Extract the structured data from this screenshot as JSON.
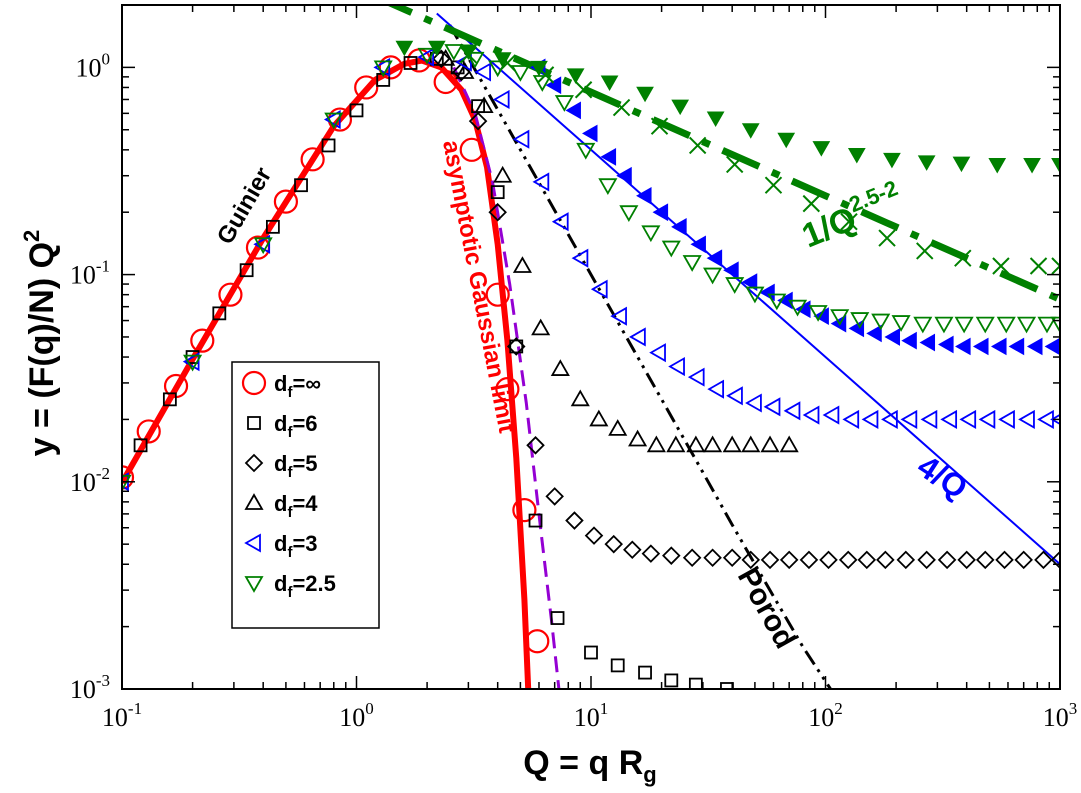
{
  "chart_data": {
    "type": "scatter",
    "scale": "log-log",
    "xlabel": "Q = q R",
    "xlabel_sub": "g",
    "ylabel": "y = (F(q)/N) Q",
    "ylabel_sup": "2",
    "xlim": [
      0.1,
      1000
    ],
    "ylim": [
      0.001,
      2
    ],
    "x_ticks": [
      {
        "value": 0.1,
        "base": "10",
        "exp": "-1"
      },
      {
        "value": 1,
        "base": "10",
        "exp": "0"
      },
      {
        "value": 10,
        "base": "10",
        "exp": "1"
      },
      {
        "value": 100,
        "base": "10",
        "exp": "2"
      },
      {
        "value": 1000,
        "base": "10",
        "exp": "3"
      }
    ],
    "y_ticks": [
      {
        "value": 0.001,
        "base": "10",
        "exp": "-3"
      },
      {
        "value": 0.01,
        "base": "10",
        "exp": "-2"
      },
      {
        "value": 0.1,
        "base": "10",
        "exp": "-1"
      },
      {
        "value": 1,
        "base": "10",
        "exp": "0"
      }
    ],
    "series": [
      {
        "name": "df_inf",
        "label_base": "d",
        "label_sub": "f",
        "label_rest": "=∞",
        "marker": "circle",
        "color": "#ff0000",
        "x": [
          0.1,
          0.13,
          0.17,
          0.22,
          0.29,
          0.38,
          0.5,
          0.65,
          0.85,
          1.1,
          1.4,
          1.85,
          2.4,
          3.1,
          4.0,
          4.4,
          5.2,
          5.9
        ],
        "y": [
          0.0105,
          0.0175,
          0.029,
          0.048,
          0.08,
          0.135,
          0.225,
          0.36,
          0.56,
          0.8,
          1.0,
          1.08,
          0.85,
          0.4,
          0.08,
          0.028,
          0.0073,
          0.0017
        ]
      },
      {
        "name": "df_6",
        "label_base": "d",
        "label_sub": "f",
        "label_rest": "=6",
        "marker": "square",
        "color": "#000000",
        "x": [
          0.12,
          0.16,
          0.2,
          0.26,
          0.34,
          0.44,
          0.58,
          0.76,
          1.0,
          1.3,
          1.7,
          2.2,
          2.7,
          3.3,
          4.0,
          4.8,
          5.8,
          7.2,
          10,
          13,
          17,
          22,
          28,
          38
        ],
        "y": [
          0.015,
          0.025,
          0.04,
          0.065,
          0.105,
          0.17,
          0.27,
          0.42,
          0.62,
          0.87,
          1.05,
          1.1,
          1.0,
          0.65,
          0.25,
          0.045,
          0.0065,
          0.0022,
          0.0015,
          0.0013,
          0.0012,
          0.0011,
          0.00105,
          0.001
        ]
      },
      {
        "name": "df_5",
        "label_base": "d",
        "label_sub": "f",
        "label_rest": "=5",
        "marker": "diamond",
        "color": "#000000",
        "x": [
          2.3,
          2.8,
          3.3,
          4.0,
          4.8,
          5.8,
          7.0,
          8.5,
          10.3,
          12.5,
          15,
          18,
          22,
          27,
          33,
          40,
          48,
          58,
          70,
          85,
          103,
          125,
          150,
          180,
          220,
          270,
          330,
          400,
          480,
          580,
          700,
          850,
          1000
        ],
        "y": [
          1.1,
          0.95,
          0.55,
          0.2,
          0.045,
          0.015,
          0.0085,
          0.0065,
          0.0055,
          0.005,
          0.0047,
          0.0045,
          0.0044,
          0.0043,
          0.0043,
          0.0043,
          0.0042,
          0.0042,
          0.0042,
          0.0042,
          0.0042,
          0.0042,
          0.0042,
          0.0042,
          0.0042,
          0.0042,
          0.0042,
          0.0042,
          0.0042,
          0.0042,
          0.0042,
          0.0042,
          0.0042
        ]
      },
      {
        "name": "df_4",
        "label_base": "d",
        "label_sub": "f",
        "label_rest": "=4",
        "marker": "triangle-up",
        "color": "#000000",
        "x": [
          2.4,
          2.9,
          3.5,
          4.2,
          5.1,
          6.1,
          7.4,
          9.0,
          10.8,
          13,
          15.8,
          19,
          23,
          28,
          33,
          40,
          48,
          58,
          70
        ],
        "y": [
          1.1,
          0.95,
          0.65,
          0.3,
          0.11,
          0.055,
          0.035,
          0.025,
          0.02,
          0.018,
          0.016,
          0.015,
          0.015,
          0.015,
          0.015,
          0.015,
          0.015,
          0.015,
          0.015
        ]
      },
      {
        "name": "df_3",
        "label_base": "d",
        "label_sub": "f",
        "label_rest": "=3",
        "marker": "triangle-left-open",
        "color": "#0000ff",
        "x": [
          0.1,
          0.2,
          0.4,
          0.8,
          1.3,
          2.0,
          2.9,
          3.5,
          4.2,
          5.1,
          6.2,
          7.5,
          9.1,
          11,
          13.3,
          16,
          19.5,
          23.5,
          28.5,
          34.5,
          41.5,
          50,
          60,
          73,
          88,
          107,
          130,
          157,
          190,
          230,
          280,
          340,
          410,
          495,
          600,
          730,
          880,
          1000
        ],
        "y": [
          0.01,
          0.038,
          0.14,
          0.56,
          1.0,
          1.12,
          1.06,
          0.95,
          0.7,
          0.45,
          0.28,
          0.18,
          0.12,
          0.085,
          0.063,
          0.05,
          0.042,
          0.036,
          0.032,
          0.028,
          0.026,
          0.024,
          0.023,
          0.022,
          0.021,
          0.021,
          0.02,
          0.02,
          0.02,
          0.02,
          0.02,
          0.02,
          0.02,
          0.02,
          0.02,
          0.02,
          0.02,
          0.02
        ]
      },
      {
        "name": "df_3_filled",
        "label_base": "",
        "label_sub": "",
        "label_rest": "",
        "marker": "triangle-left-filled",
        "color": "#0000ff",
        "x": [
          6,
          7,
          8.5,
          10,
          12,
          14,
          17,
          20,
          24,
          29,
          34,
          40,
          48,
          57,
          68,
          81,
          97,
          115,
          137,
          163,
          195,
          230,
          275,
          330,
          390,
          465,
          555,
          660,
          790,
          940
        ],
        "y": [
          1.0,
          0.82,
          0.62,
          0.48,
          0.37,
          0.3,
          0.24,
          0.2,
          0.17,
          0.14,
          0.12,
          0.105,
          0.092,
          0.082,
          0.075,
          0.068,
          0.063,
          0.058,
          0.055,
          0.052,
          0.05,
          0.048,
          0.047,
          0.046,
          0.045,
          0.045,
          0.045,
          0.045,
          0.045,
          0.045
        ]
      },
      {
        "name": "df_2.5",
        "label_base": "d",
        "label_sub": "f",
        "label_rest": "=2.5",
        "marker": "triangle-down",
        "color": "#008000",
        "x": [
          0.1,
          0.2,
          0.4,
          0.8,
          1.3,
          2.0,
          2.6,
          3.2,
          4.0,
          5.0,
          6.2,
          7.7,
          9.5,
          11.8,
          14.5,
          18,
          22,
          27,
          33,
          41,
          50,
          62,
          76,
          93,
          115,
          140,
          172,
          210,
          260,
          320,
          390,
          480,
          590,
          720,
          880,
          1000
        ],
        "y": [
          0.01,
          0.038,
          0.14,
          0.56,
          1.0,
          1.15,
          1.2,
          1.1,
          1.0,
          0.95,
          0.85,
          0.68,
          0.4,
          0.27,
          0.2,
          0.16,
          0.135,
          0.115,
          0.1,
          0.09,
          0.081,
          0.075,
          0.07,
          0.066,
          0.063,
          0.061,
          0.06,
          0.059,
          0.058,
          0.058,
          0.058,
          0.058,
          0.058,
          0.058,
          0.058,
          0.058
        ]
      },
      {
        "name": "df_2.5_filled",
        "label_base": "",
        "label_sub": "",
        "label_rest": "",
        "marker": "triangle-down-filled",
        "color": "#008000",
        "x": [
          1.6,
          2.2,
          3.0,
          4.2,
          6.0,
          8.6,
          12,
          17,
          24,
          34,
          48,
          68,
          96,
          136,
          192,
          270,
          380,
          540,
          760,
          1000
        ],
        "y": [
          1.25,
          1.25,
          1.2,
          1.1,
          1.0,
          0.92,
          0.85,
          0.75,
          0.65,
          0.57,
          0.5,
          0.45,
          0.41,
          0.38,
          0.36,
          0.35,
          0.345,
          0.34,
          0.34,
          0.34
        ]
      },
      {
        "name": "df_2.5_x",
        "label_base": "",
        "label_sub": "",
        "label_rest": "",
        "marker": "x",
        "color": "#008000",
        "x": [
          3,
          4.4,
          6.4,
          9.3,
          13.5,
          19.6,
          28.5,
          41,
          60,
          87,
          126,
          183,
          265,
          385,
          560,
          810,
          1000
        ],
        "y": [
          1.15,
          1.05,
          0.92,
          0.78,
          0.64,
          0.52,
          0.42,
          0.34,
          0.27,
          0.22,
          0.18,
          0.15,
          0.13,
          0.12,
          0.11,
          0.11,
          0.11
        ]
      }
    ],
    "curves": [
      {
        "name": "asymptotic Gaussian limit (solid)",
        "color": "#ff0000",
        "x": [
          0.1,
          0.2,
          0.4,
          0.8,
          1.2,
          1.6,
          1.9,
          2.3,
          2.8,
          3.2,
          3.6,
          4.0,
          4.4,
          4.8,
          5.2,
          5.4
        ],
        "y": [
          0.0099,
          0.039,
          0.15,
          0.52,
          0.87,
          1.04,
          1.08,
          1.0,
          0.78,
          0.56,
          0.33,
          0.14,
          0.048,
          0.013,
          0.0027,
          0.001
        ]
      },
      {
        "name": "purple dashed",
        "color": "#9400d3",
        "x": [
          2.6,
          3.2,
          3.8,
          4.5,
          5.3,
          6.1,
          6.8,
          7.3
        ],
        "y": [
          1.0,
          0.6,
          0.28,
          0.09,
          0.024,
          0.0059,
          0.0021,
          0.001
        ]
      },
      {
        "name": "Porod",
        "color": "#000000",
        "x": [
          2.5,
          5,
          10,
          20,
          30,
          40,
          50,
          60,
          80,
          105
        ],
        "y": [
          1.6,
          0.4,
          0.1,
          0.025,
          0.0111,
          0.0062,
          0.004,
          0.0028,
          0.0016,
          0.001
        ]
      },
      {
        "name": "4/Q",
        "color": "#0000ff",
        "x": [
          2.2,
          10,
          100,
          1000
        ],
        "y": [
          1.82,
          0.4,
          0.04,
          0.004
        ]
      },
      {
        "name": "1/Q^0.5",
        "color": "#008000",
        "x": [
          1.2,
          10,
          100,
          1000
        ],
        "y": [
          2.2,
          0.76,
          0.24,
          0.076
        ]
      }
    ],
    "annotations": [
      {
        "text": "Guinier",
        "color": "#000000"
      },
      {
        "text": "asymptotic Gaussian limit",
        "color": "#ff0000"
      },
      {
        "text": "Porod",
        "color": "#000000"
      },
      {
        "text": "4/Q",
        "color": "#0000ff"
      },
      {
        "text": "1/Q",
        "sup": "2.5-2",
        "color": "#008000"
      }
    ]
  }
}
